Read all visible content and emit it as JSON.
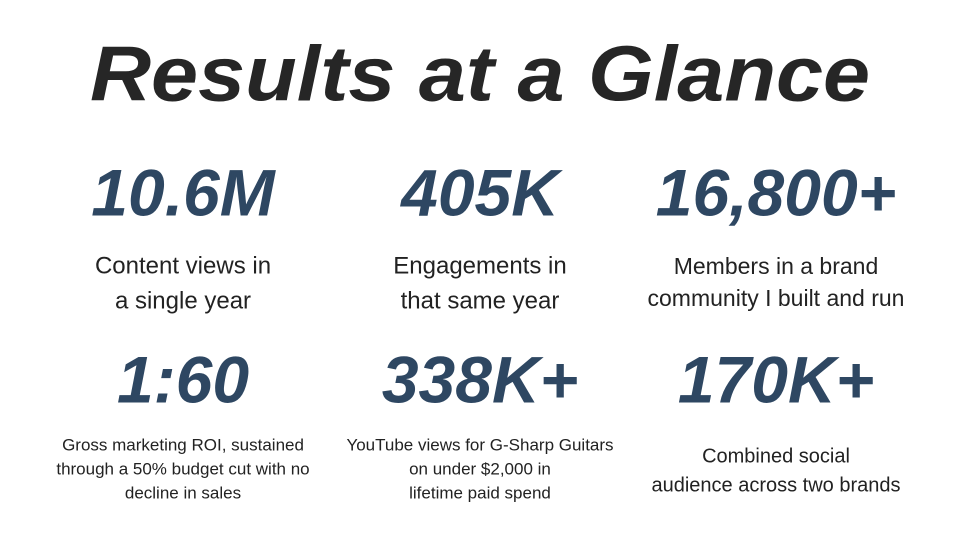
{
  "header": {
    "title": "Results at a Glance"
  },
  "stats": [
    {
      "value": "10.6M",
      "lines": [
        "Content views in",
        "a single year"
      ]
    },
    {
      "value": "405K",
      "lines": [
        "Engagements in",
        "that same year"
      ]
    },
    {
      "value": "16,800+",
      "lines": [
        "Members in a brand",
        "community I built and run"
      ]
    },
    {
      "value": "1:60",
      "lines": [
        "Gross marketing ROI, sustained",
        "through a 50% budget cut with no",
        "decline in sales"
      ]
    },
    {
      "value": "338K+",
      "lines": [
        "YouTube views for G-Sharp Guitars",
        "on under $2,000 in",
        "lifetime paid spend"
      ]
    },
    {
      "value": "170K+",
      "lines": [
        "Combined social",
        "audience across two brands"
      ]
    }
  ]
}
